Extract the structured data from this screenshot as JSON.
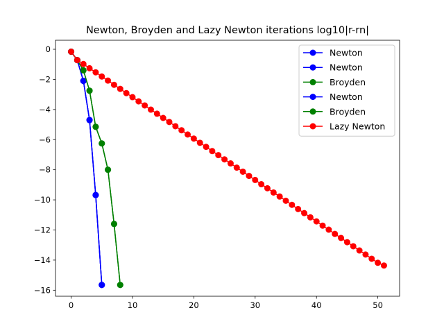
{
  "chart_data": {
    "type": "line",
    "title": "Newton, Broyden and Lazy Newton iterations log10|r-rn|",
    "xlabel": "",
    "ylabel": "",
    "xlim": [
      -2.55,
      53.55
    ],
    "ylim": [
      -16.4,
      0.6
    ],
    "xticks": [
      0,
      10,
      20,
      30,
      40,
      50
    ],
    "yticks": [
      0,
      -2,
      -4,
      -6,
      -8,
      -10,
      -12,
      -14,
      -16
    ],
    "grid": false,
    "legend_position": "top-right",
    "series": [
      {
        "name": "Newton",
        "color": "#0000ff",
        "x": [
          0,
          1,
          2,
          3,
          4,
          5
        ],
        "y": [
          -0.16,
          -0.72,
          -2.1,
          -4.7,
          -9.68,
          -15.65
        ]
      },
      {
        "name": "Newton",
        "color": "#0000ff",
        "x": [
          0,
          1,
          2,
          3,
          4,
          5
        ],
        "y": [
          -0.16,
          -0.72,
          -2.1,
          -4.7,
          -9.68,
          -15.65
        ]
      },
      {
        "name": "Broyden",
        "color": "#008000",
        "x": [
          0,
          1,
          2,
          3,
          4,
          5,
          6,
          7,
          8
        ],
        "y": [
          -0.16,
          -0.72,
          -1.4,
          -2.75,
          -5.15,
          -6.25,
          -8.0,
          -11.6,
          -15.65
        ]
      },
      {
        "name": "Newton",
        "color": "#0000ff",
        "x": [
          0,
          1,
          2,
          3,
          4,
          5
        ],
        "y": [
          -0.16,
          -0.72,
          -2.1,
          -4.7,
          -9.68,
          -15.65
        ]
      },
      {
        "name": "Broyden",
        "color": "#008000",
        "x": [
          0,
          1,
          2,
          3,
          4,
          5,
          6,
          7,
          8
        ],
        "y": [
          -0.16,
          -0.72,
          -1.4,
          -2.75,
          -5.15,
          -6.25,
          -8.0,
          -11.6,
          -15.65
        ]
      },
      {
        "name": "Lazy Newton",
        "color": "#ff0000",
        "x": [
          0,
          1,
          2,
          3,
          4,
          5,
          6,
          7,
          8,
          9,
          10,
          11,
          12,
          13,
          14,
          15,
          16,
          17,
          18,
          19,
          20,
          21,
          22,
          23,
          24,
          25,
          26,
          27,
          28,
          29,
          30,
          31,
          32,
          33,
          34,
          35,
          36,
          37,
          38,
          39,
          40,
          41,
          42,
          43,
          44,
          45,
          46,
          47,
          48,
          49,
          50,
          51
        ],
        "y": [
          -0.16,
          -0.72,
          -0.98,
          -1.26,
          -1.53,
          -1.81,
          -2.08,
          -2.36,
          -2.63,
          -2.91,
          -3.18,
          -3.46,
          -3.73,
          -4.01,
          -4.28,
          -4.56,
          -4.83,
          -5.11,
          -5.38,
          -5.66,
          -5.93,
          -6.21,
          -6.48,
          -6.76,
          -7.03,
          -7.31,
          -7.58,
          -7.86,
          -8.13,
          -8.41,
          -8.68,
          -8.96,
          -9.23,
          -9.51,
          -9.78,
          -10.06,
          -10.33,
          -10.61,
          -10.88,
          -11.16,
          -11.43,
          -11.71,
          -11.98,
          -12.26,
          -12.53,
          -12.81,
          -13.08,
          -13.36,
          -13.63,
          -13.91,
          -14.18,
          -14.36
        ]
      }
    ]
  }
}
